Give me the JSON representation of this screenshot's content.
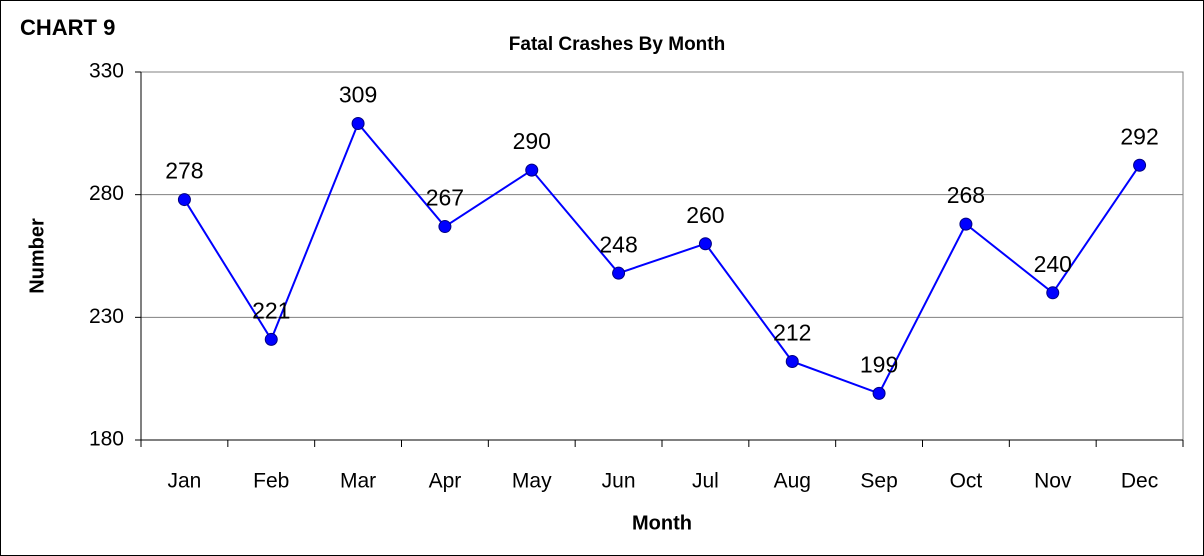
{
  "chart_data": {
    "type": "line",
    "chart_label": "CHART 9",
    "title": "Fatal Crashes By Month",
    "x_label": "Month",
    "y_label": "Number",
    "categories": [
      "Jan",
      "Feb",
      "Mar",
      "Apr",
      "May",
      "Jun",
      "Jul",
      "Aug",
      "Sep",
      "Oct",
      "Nov",
      "Dec"
    ],
    "series": [
      {
        "color": "#0000ff",
        "values": [
          278,
          221,
          309,
          267,
          290,
          248,
          260,
          212,
          199,
          268,
          240,
          292
        ]
      }
    ],
    "ylim": [
      180,
      330
    ],
    "yticks": [
      180,
      230,
      280,
      330
    ],
    "grid": true
  }
}
